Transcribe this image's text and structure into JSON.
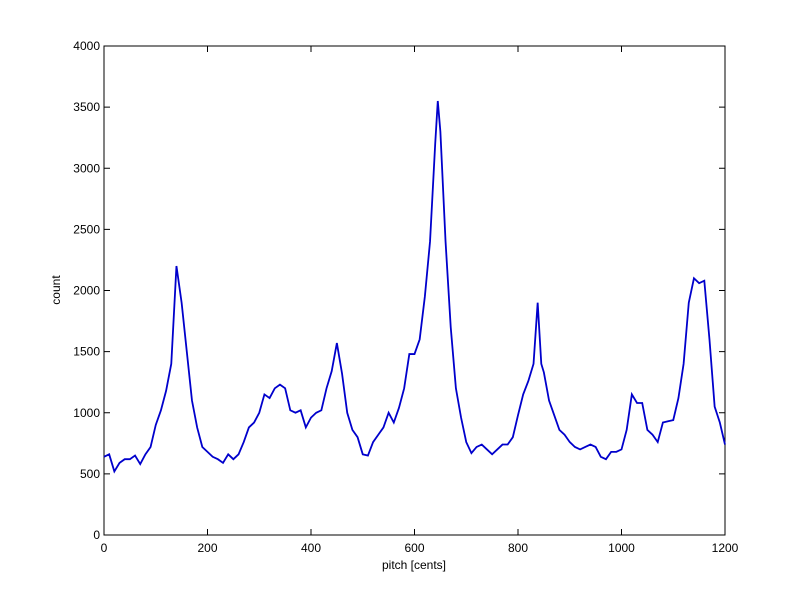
{
  "chart_data": {
    "type": "line",
    "x_label": "pitch [cents]",
    "y_label": "count",
    "x": [
      0,
      10,
      20,
      30,
      40,
      50,
      60,
      70,
      80,
      90,
      100,
      110,
      120,
      130,
      140,
      150,
      160,
      170,
      180,
      190,
      200,
      210,
      220,
      230,
      240,
      250,
      260,
      270,
      280,
      290,
      300,
      310,
      320,
      330,
      340,
      350,
      360,
      370,
      380,
      390,
      400,
      410,
      420,
      430,
      440,
      450,
      460,
      470,
      480,
      490,
      500,
      510,
      520,
      530,
      540,
      550,
      560,
      570,
      580,
      590,
      600,
      610,
      620,
      630,
      640,
      645,
      650,
      660,
      670,
      680,
      690,
      700,
      710,
      720,
      730,
      740,
      750,
      760,
      770,
      780,
      790,
      800,
      810,
      820,
      830,
      838,
      845,
      850,
      860,
      870,
      880,
      890,
      900,
      910,
      920,
      930,
      940,
      950,
      960,
      970,
      980,
      990,
      1000,
      1010,
      1020,
      1030,
      1040,
      1050,
      1060,
      1070,
      1080,
      1090,
      1100,
      1110,
      1120,
      1130,
      1140,
      1150,
      1160,
      1170,
      1180,
      1190,
      1200
    ],
    "series": [
      {
        "name": "count",
        "color": "#0000cc",
        "values": [
          640,
          660,
          520,
          590,
          620,
          620,
          650,
          580,
          660,
          720,
          900,
          1020,
          1180,
          1400,
          2200,
          1900,
          1500,
          1100,
          880,
          720,
          680,
          640,
          620,
          590,
          660,
          620,
          660,
          760,
          880,
          920,
          1000,
          1150,
          1120,
          1200,
          1230,
          1200,
          1020,
          1000,
          1020,
          880,
          960,
          1000,
          1020,
          1200,
          1340,
          1570,
          1320,
          1000,
          860,
          800,
          660,
          650,
          760,
          820,
          880,
          1000,
          920,
          1040,
          1200,
          1480,
          1480,
          1600,
          1950,
          2400,
          3200,
          3550,
          3300,
          2400,
          1700,
          1200,
          960,
          760,
          670,
          720,
          740,
          700,
          660,
          700,
          740,
          740,
          800,
          980,
          1150,
          1260,
          1400,
          1900,
          1400,
          1330,
          1100,
          980,
          860,
          820,
          760,
          720,
          700,
          720,
          740,
          720,
          640,
          620,
          680,
          680,
          700,
          860,
          1150,
          1080,
          1080,
          860,
          820,
          760,
          920,
          930,
          940,
          1120,
          1400,
          1900,
          2100,
          2060,
          2080,
          1600,
          1050,
          920,
          740
        ]
      }
    ],
    "xlim": [
      0,
      1200
    ],
    "xticks": [
      0,
      200,
      400,
      600,
      800,
      1000,
      1200
    ],
    "ylim": [
      0,
      4000
    ],
    "yticks": [
      0,
      500,
      1000,
      1500,
      2000,
      2500,
      3000,
      3500,
      4000
    ]
  }
}
